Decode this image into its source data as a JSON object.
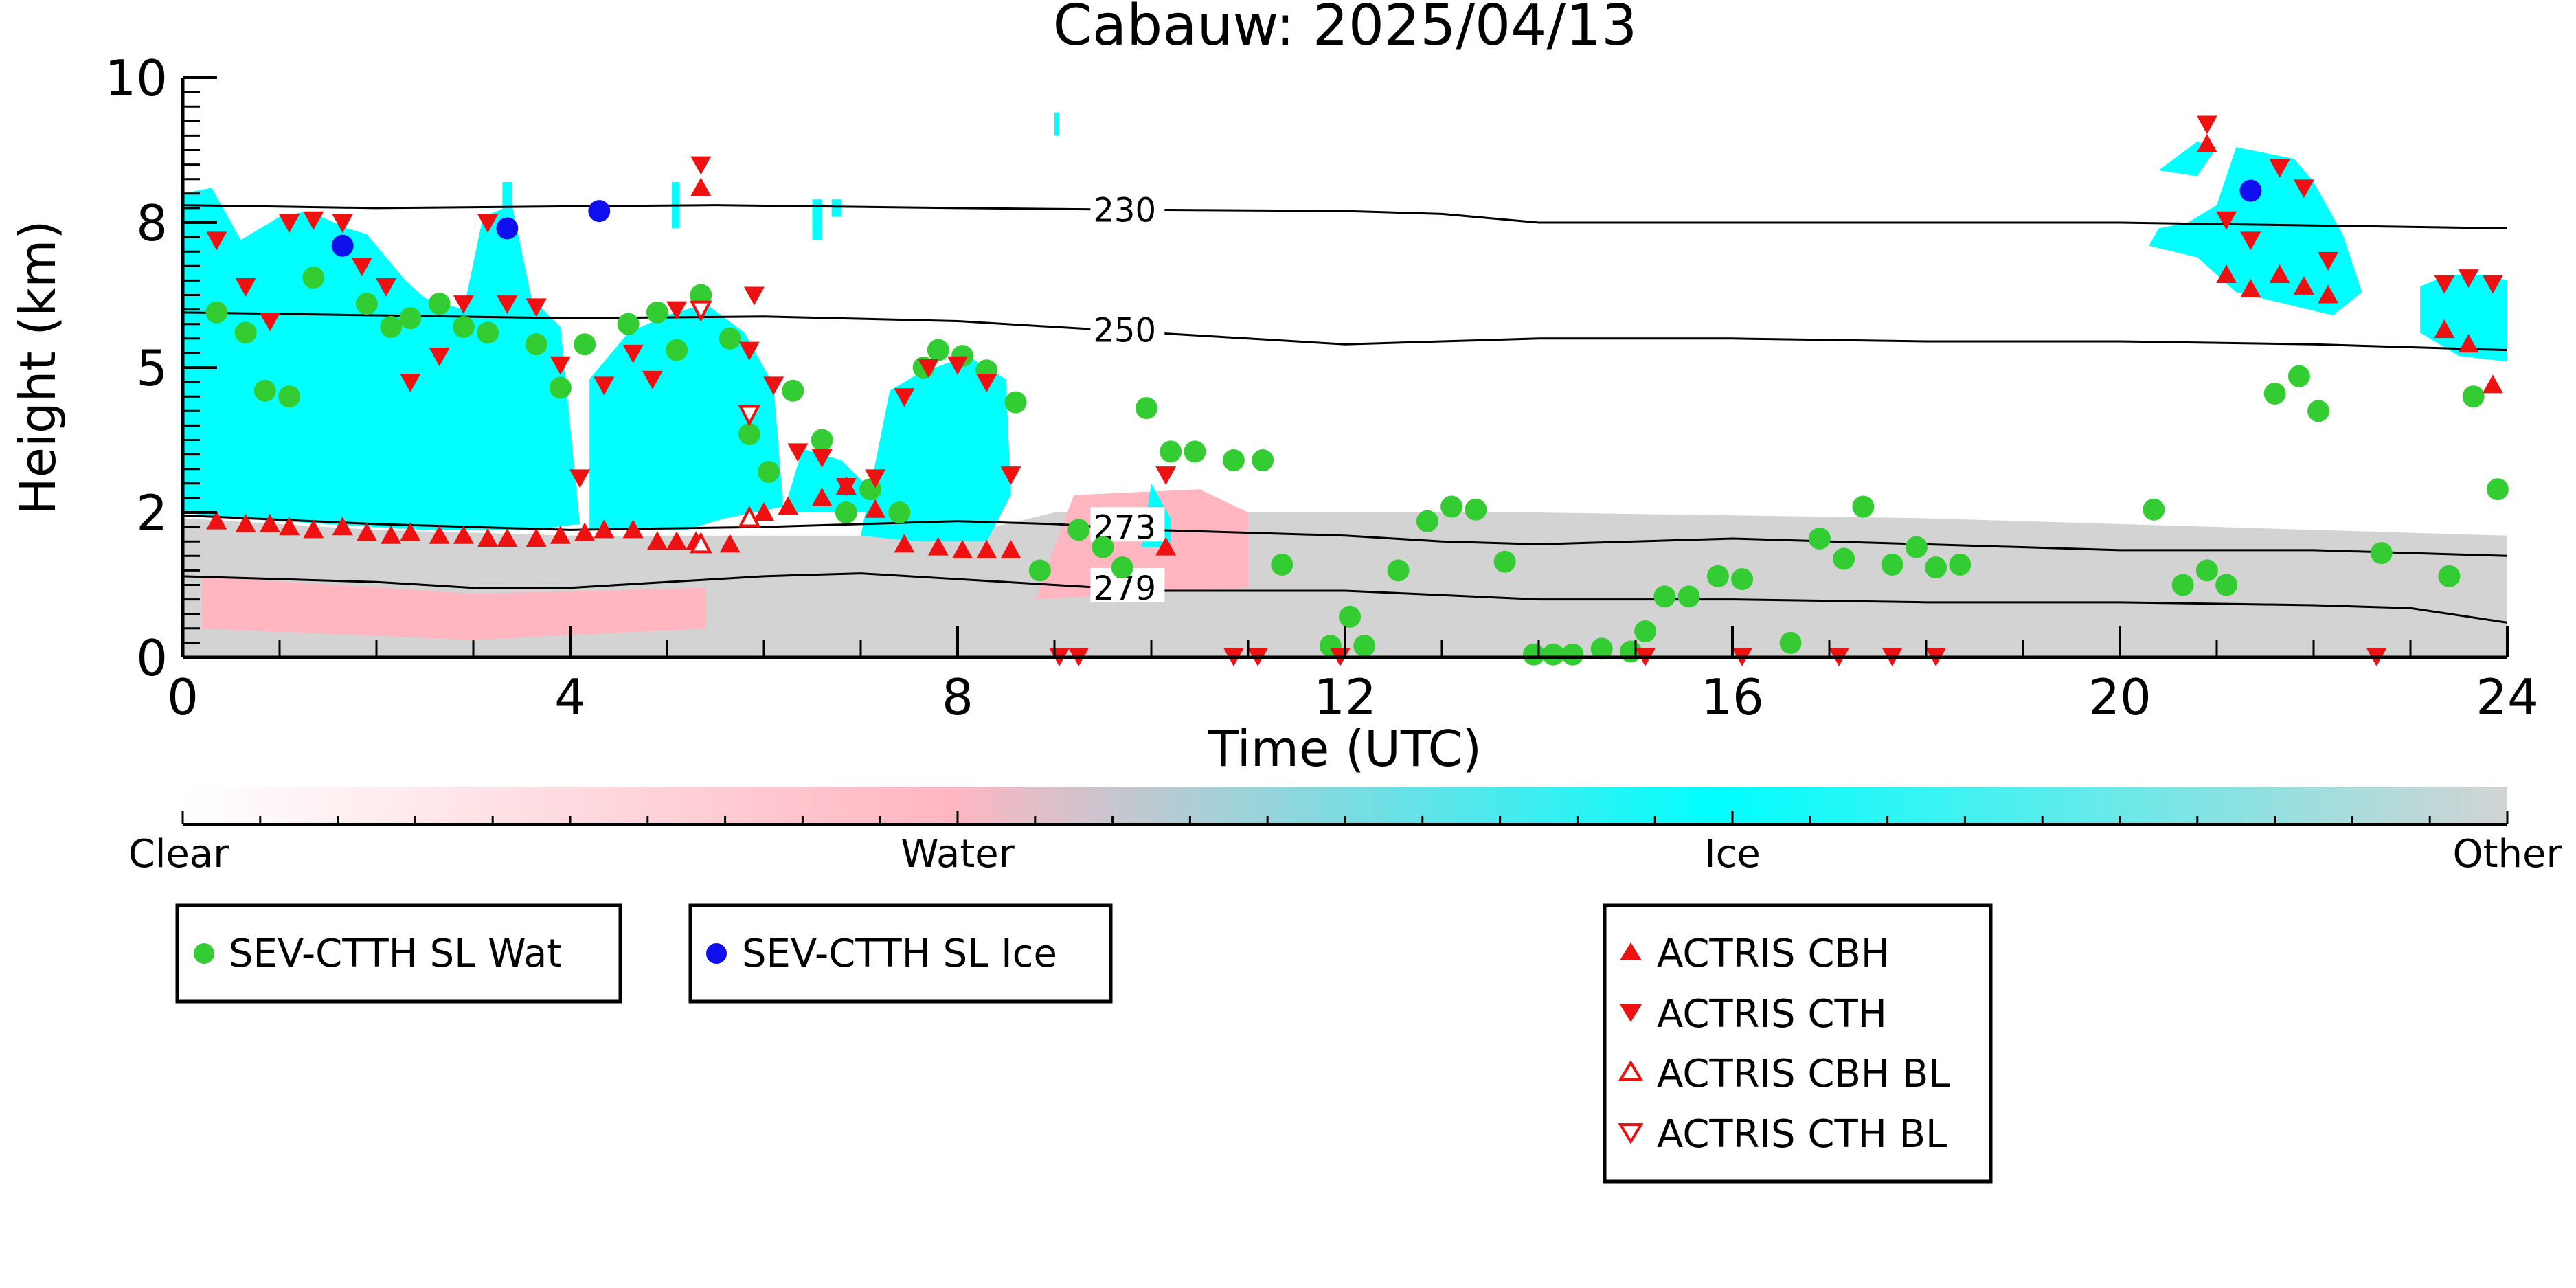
{
  "chart_data": {
    "type": "scatter",
    "title": "Cabauw: 2025/04/13",
    "xlabel": "Time (UTC)",
    "ylabel": "Height (km)",
    "xlim": [
      0,
      24
    ],
    "ylim": [
      0,
      10
    ],
    "x_ticks": [
      0,
      4,
      8,
      12,
      16,
      20,
      24
    ],
    "x_tick_labels": [
      "0",
      "4",
      "8",
      "12",
      "16",
      "20",
      "24"
    ],
    "y_ticks": [
      0,
      2.5,
      5,
      7.5,
      10
    ],
    "y_tick_labels": [
      "0",
      "2",
      "5",
      "8",
      "10"
    ],
    "colorbar": {
      "labels": [
        "Clear",
        "Water",
        "Ice",
        "Other"
      ],
      "colors": [
        "#ffffff",
        "#ffb6c1",
        "#00ffff",
        "#d3d3d3"
      ]
    },
    "colors": {
      "sev_wat": "#33cc33",
      "sev_ice": "#1010ee",
      "actris": "#ee1111",
      "ice_field": "#00ffff",
      "water_field": "#ffb6c1",
      "other_field": "#d3d3d3"
    },
    "contours": [
      {
        "label": "230",
        "label_x": 9.4,
        "points": [
          [
            0,
            7.8
          ],
          [
            2,
            7.75
          ],
          [
            4,
            7.78
          ],
          [
            5.5,
            7.8
          ],
          [
            8,
            7.75
          ],
          [
            10,
            7.72
          ],
          [
            12,
            7.7
          ],
          [
            13,
            7.65
          ],
          [
            14,
            7.5
          ],
          [
            16,
            7.5
          ],
          [
            18,
            7.5
          ],
          [
            20,
            7.5
          ],
          [
            22,
            7.45
          ],
          [
            24,
            7.4
          ]
        ]
      },
      {
        "label": "250",
        "label_x": 9.4,
        "points": [
          [
            0,
            5.95
          ],
          [
            2,
            5.9
          ],
          [
            4,
            5.85
          ],
          [
            6,
            5.88
          ],
          [
            8,
            5.8
          ],
          [
            10,
            5.6
          ],
          [
            11,
            5.5
          ],
          [
            12,
            5.4
          ],
          [
            13,
            5.45
          ],
          [
            14,
            5.5
          ],
          [
            16,
            5.5
          ],
          [
            18,
            5.45
          ],
          [
            20,
            5.45
          ],
          [
            22,
            5.4
          ],
          [
            24,
            5.3
          ]
        ]
      },
      {
        "label": "273",
        "label_x": 9.4,
        "points": [
          [
            0,
            2.45
          ],
          [
            2,
            2.3
          ],
          [
            4,
            2.2
          ],
          [
            6,
            2.25
          ],
          [
            8,
            2.35
          ],
          [
            9,
            2.3
          ],
          [
            10,
            2.2
          ],
          [
            12,
            2.1
          ],
          [
            13,
            2.0
          ],
          [
            14,
            1.95
          ],
          [
            16,
            2.05
          ],
          [
            18,
            1.95
          ],
          [
            20,
            1.85
          ],
          [
            22,
            1.85
          ],
          [
            24,
            1.75
          ]
        ]
      },
      {
        "label": "279",
        "label_x": 9.4,
        "points": [
          [
            0,
            1.4
          ],
          [
            2,
            1.3
          ],
          [
            3,
            1.2
          ],
          [
            4,
            1.2
          ],
          [
            6,
            1.4
          ],
          [
            7,
            1.45
          ],
          [
            8,
            1.35
          ],
          [
            9,
            1.25
          ],
          [
            10,
            1.15
          ],
          [
            12,
            1.15
          ],
          [
            14,
            1.0
          ],
          [
            16,
            1.0
          ],
          [
            18,
            0.95
          ],
          [
            20,
            0.95
          ],
          [
            22,
            0.9
          ],
          [
            23,
            0.85
          ],
          [
            24,
            0.6
          ]
        ]
      }
    ],
    "series": [
      {
        "name": "SEV-CTTH SL Wat",
        "marker": "circle-filled",
        "points": [
          [
            0.35,
            5.95
          ],
          [
            0.65,
            5.6
          ],
          [
            0.85,
            4.6
          ],
          [
            1.1,
            4.5
          ],
          [
            1.35,
            6.55
          ],
          [
            1.9,
            6.1
          ],
          [
            2.15,
            5.7
          ],
          [
            2.35,
            5.85
          ],
          [
            2.65,
            6.1
          ],
          [
            2.9,
            5.7
          ],
          [
            3.15,
            5.6
          ],
          [
            3.65,
            5.4
          ],
          [
            3.9,
            4.65
          ],
          [
            4.15,
            5.4
          ],
          [
            4.6,
            5.75
          ],
          [
            4.9,
            5.95
          ],
          [
            5.1,
            5.3
          ],
          [
            5.35,
            6.25
          ],
          [
            5.65,
            5.5
          ],
          [
            5.85,
            3.85
          ],
          [
            6.05,
            3.2
          ],
          [
            6.3,
            4.6
          ],
          [
            6.6,
            3.75
          ],
          [
            6.85,
            2.5
          ],
          [
            7.1,
            2.9
          ],
          [
            7.4,
            2.5
          ],
          [
            7.65,
            5.0
          ],
          [
            7.8,
            5.3
          ],
          [
            8.05,
            5.2
          ],
          [
            8.3,
            4.95
          ],
          [
            8.6,
            4.4
          ],
          [
            8.85,
            1.5
          ],
          [
            9.25,
            2.2
          ],
          [
            9.5,
            1.9
          ],
          [
            9.7,
            1.55
          ],
          [
            9.95,
            4.3
          ],
          [
            10.2,
            3.55
          ],
          [
            10.45,
            3.55
          ],
          [
            10.85,
            3.4
          ],
          [
            11.15,
            3.4
          ],
          [
            11.35,
            1.6
          ],
          [
            11.85,
            0.2
          ],
          [
            12.05,
            0.7
          ],
          [
            12.2,
            0.2
          ],
          [
            12.55,
            1.5
          ],
          [
            12.85,
            2.35
          ],
          [
            13.1,
            2.6
          ],
          [
            13.35,
            2.55
          ],
          [
            13.65,
            1.65
          ],
          [
            13.95,
            0.05
          ],
          [
            14.15,
            0.05
          ],
          [
            14.35,
            0.05
          ],
          [
            14.65,
            0.15
          ],
          [
            14.95,
            0.1
          ],
          [
            15.1,
            0.45
          ],
          [
            15.3,
            1.05
          ],
          [
            15.55,
            1.05
          ],
          [
            15.85,
            1.4
          ],
          [
            16.1,
            1.35
          ],
          [
            16.6,
            0.25
          ],
          [
            16.9,
            2.05
          ],
          [
            17.15,
            1.7
          ],
          [
            17.35,
            2.6
          ],
          [
            17.65,
            1.6
          ],
          [
            17.9,
            1.9
          ],
          [
            18.1,
            1.55
          ],
          [
            18.35,
            1.6
          ],
          [
            20.35,
            2.55
          ],
          [
            20.65,
            1.25
          ],
          [
            20.9,
            1.5
          ],
          [
            21.1,
            1.25
          ],
          [
            21.6,
            4.55
          ],
          [
            21.85,
            4.85
          ],
          [
            22.05,
            4.25
          ],
          [
            22.7,
            1.8
          ],
          [
            23.4,
            1.4
          ],
          [
            23.65,
            4.5
          ],
          [
            23.9,
            2.9
          ]
        ]
      },
      {
        "name": "SEV-CTTH SL Ice",
        "marker": "circle-filled",
        "points": [
          [
            1.65,
            7.1
          ],
          [
            3.35,
            7.4
          ],
          [
            4.3,
            7.7
          ],
          [
            21.35,
            8.05
          ]
        ]
      },
      {
        "name": "ACTRIS CBH",
        "marker": "triangle-up-filled",
        "points": [
          [
            0.35,
            2.35
          ],
          [
            0.65,
            2.3
          ],
          [
            0.9,
            2.3
          ],
          [
            1.1,
            2.25
          ],
          [
            1.35,
            2.2
          ],
          [
            1.65,
            2.25
          ],
          [
            1.9,
            2.15
          ],
          [
            2.15,
            2.1
          ],
          [
            2.35,
            2.15
          ],
          [
            2.65,
            2.1
          ],
          [
            2.9,
            2.1
          ],
          [
            3.15,
            2.05
          ],
          [
            3.35,
            2.05
          ],
          [
            3.65,
            2.05
          ],
          [
            3.9,
            2.1
          ],
          [
            4.15,
            2.15
          ],
          [
            4.35,
            2.2
          ],
          [
            4.65,
            2.2
          ],
          [
            4.9,
            2.0
          ],
          [
            5.1,
            2.0
          ],
          [
            5.3,
            2.0
          ],
          [
            5.65,
            1.95
          ],
          [
            5.35,
            8.1
          ],
          [
            6.0,
            2.5
          ],
          [
            6.25,
            2.6
          ],
          [
            6.6,
            2.75
          ],
          [
            6.85,
            2.95
          ],
          [
            7.15,
            2.55
          ],
          [
            7.45,
            1.95
          ],
          [
            7.8,
            1.9
          ],
          [
            8.05,
            1.85
          ],
          [
            8.3,
            1.85
          ],
          [
            8.55,
            1.85
          ],
          [
            10.15,
            1.9
          ],
          [
            20.9,
            8.85
          ],
          [
            21.1,
            6.6
          ],
          [
            21.35,
            6.35
          ],
          [
            21.65,
            6.6
          ],
          [
            21.9,
            6.4
          ],
          [
            22.15,
            6.25
          ],
          [
            23.35,
            5.65
          ],
          [
            23.6,
            5.4
          ],
          [
            23.85,
            4.7
          ]
        ]
      },
      {
        "name": "ACTRIS CTH",
        "marker": "triangle-down-filled",
        "points": [
          [
            0.35,
            7.2
          ],
          [
            0.65,
            6.4
          ],
          [
            0.9,
            5.8
          ],
          [
            1.1,
            7.5
          ],
          [
            1.35,
            7.55
          ],
          [
            1.65,
            7.5
          ],
          [
            1.85,
            6.75
          ],
          [
            2.1,
            6.4
          ],
          [
            2.35,
            4.75
          ],
          [
            2.65,
            5.2
          ],
          [
            2.9,
            6.1
          ],
          [
            3.15,
            7.5
          ],
          [
            3.35,
            6.1
          ],
          [
            3.65,
            6.05
          ],
          [
            3.9,
            5.05
          ],
          [
            4.1,
            3.1
          ],
          [
            4.35,
            4.7
          ],
          [
            4.65,
            5.25
          ],
          [
            4.85,
            4.8
          ],
          [
            5.1,
            6.0
          ],
          [
            5.35,
            8.5
          ],
          [
            5.85,
            5.3
          ],
          [
            5.9,
            6.25
          ],
          [
            6.1,
            4.7
          ],
          [
            6.35,
            3.55
          ],
          [
            6.6,
            3.45
          ],
          [
            6.85,
            2.95
          ],
          [
            7.15,
            3.1
          ],
          [
            7.45,
            4.5
          ],
          [
            7.7,
            5.0
          ],
          [
            8.0,
            5.05
          ],
          [
            8.3,
            4.75
          ],
          [
            8.55,
            3.15
          ],
          [
            9.05,
            0.0
          ],
          [
            9.25,
            0.0
          ],
          [
            10.15,
            3.15
          ],
          [
            10.85,
            0.0
          ],
          [
            11.1,
            0.0
          ],
          [
            11.95,
            0.0
          ],
          [
            15.1,
            0.0
          ],
          [
            16.1,
            0.0
          ],
          [
            17.1,
            0.0
          ],
          [
            17.65,
            0.0
          ],
          [
            18.1,
            0.0
          ],
          [
            20.9,
            9.2
          ],
          [
            21.1,
            7.55
          ],
          [
            21.35,
            7.2
          ],
          [
            21.65,
            8.45
          ],
          [
            21.9,
            8.1
          ],
          [
            22.15,
            6.85
          ],
          [
            22.65,
            0.0
          ],
          [
            23.35,
            6.45
          ],
          [
            23.6,
            6.55
          ],
          [
            23.85,
            6.45
          ]
        ]
      },
      {
        "name": "ACTRIS CBH BL",
        "marker": "triangle-up-open",
        "points": [
          [
            5.35,
            1.95
          ],
          [
            5.85,
            2.4
          ]
        ]
      },
      {
        "name": "ACTRIS CTH BL",
        "marker": "triangle-down-open",
        "points": [
          [
            5.35,
            6.0
          ],
          [
            5.85,
            4.2
          ]
        ]
      }
    ],
    "legend_boxes": [
      {
        "entries": [
          "SEV-CTTH SL Wat"
        ],
        "placement": "below-left"
      },
      {
        "entries": [
          "SEV-CTTH SL Ice"
        ],
        "placement": "below-center-left"
      },
      {
        "entries": [
          "ACTRIS CBH",
          "ACTRIS CTH",
          "ACTRIS CBH BL",
          "ACTRIS CTH BL"
        ],
        "placement": "below-right"
      }
    ]
  }
}
